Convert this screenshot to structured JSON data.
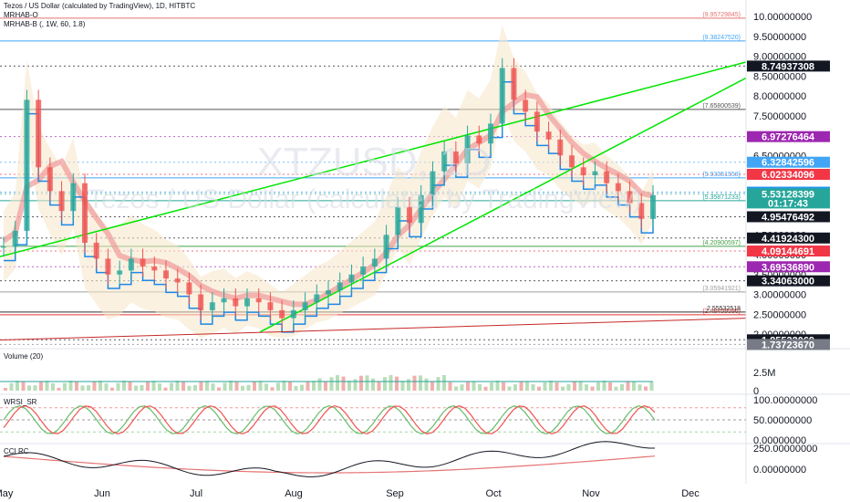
{
  "chart_data": [
    {
      "type": "line",
      "title": "Tezos / US Dollar (calculated by TradingView), 1D, HITBTC",
      "indicators": [
        "MRHAB-O",
        "MRHAB-B (, 1W, 60, 1.8)"
      ],
      "watermark_symbol": "XTZUSD, 1D",
      "watermark_name": "Tezos / US Dollar (calculated by TradingView)",
      "x_ticks": [
        "May",
        "Jun",
        "Jul",
        "Aug",
        "Sep",
        "Oct",
        "Nov",
        "Dec"
      ],
      "y_ticks": [
        "10.00000000",
        "9.50000000",
        "9.00000000",
        "8.50000000",
        "8.00000000",
        "7.50000000",
        "6.50000000",
        "5.00000000",
        "4.50000000",
        "4.00000000",
        "3.50000000",
        "3.00000000",
        "2.50000000",
        "2.00000000"
      ],
      "ylim": [
        1.7,
        10.2
      ],
      "horizontal_levels": [
        {
          "value": 9.95729845,
          "label": "(9.95729845)",
          "color": "#e57373"
        },
        {
          "value": 9.3824752,
          "label": "(9.38247520)",
          "color": "#42a5f5"
        },
        {
          "value": 7.65800539,
          "label": "(7.65800539)",
          "color": "#555555"
        },
        {
          "value": 5.93351558,
          "label": "(5.93351558)",
          "color": "#42a5f5"
        },
        {
          "value": 5.35871233,
          "label": "(5.35871233)",
          "color": "#26a69a"
        },
        {
          "value": 4.20900597,
          "label": "(4.20900597)",
          "color": "#43a047"
        },
        {
          "value": 3.05941921,
          "label": "(3.05941921)",
          "color": "#9e9e9e"
        },
        {
          "value": 2.48459596,
          "label": "(2.48459596)",
          "color": "#e53935"
        },
        {
          "value": 2.55532518,
          "label": "2.55532518",
          "color": "#333333"
        }
      ],
      "price_badges": [
        {
          "value": 8.74937308,
          "label": "8.74937308",
          "color": "#131722"
        },
        {
          "value": 6.97276464,
          "label": "6.97276464",
          "color": "#9c27b0"
        },
        {
          "value": 6.32842596,
          "label": "6.32842596",
          "color": "#42a5f5"
        },
        {
          "value": 6.02334096,
          "label": "6.02334096",
          "color": "#f23645"
        },
        {
          "value": 5.57381603,
          "label": "5.57381603",
          "color": "#2196f3"
        },
        {
          "value": 5.53128399,
          "label": "5.53128399",
          "color": "#26a69a",
          "sub": "01:17:43"
        },
        {
          "value": 4.95476492,
          "label": "4.95476492",
          "color": "#131722"
        },
        {
          "value": 4.419243,
          "label": "4.41924300",
          "color": "#131722"
        },
        {
          "value": 4.09144691,
          "label": "4.09144691",
          "color": "#f23645"
        },
        {
          "value": 3.6953689,
          "label": "3.69536890",
          "color": "#9c27b0"
        },
        {
          "value": 3.34063,
          "label": "3.34063000",
          "color": "#131722"
        },
        {
          "value": 1.85532069,
          "label": "1.85532069",
          "color": "#131722"
        },
        {
          "value": 1.7372367,
          "label": "1.73723670",
          "color": "#787b86"
        }
      ],
      "close_series": [
        4.2,
        4.6,
        7.9,
        6.2,
        5.6,
        5.1,
        5.8,
        4.3,
        3.9,
        3.5,
        3.6,
        3.9,
        3.7,
        3.6,
        3.4,
        3.3,
        3.0,
        2.6,
        2.8,
        2.9,
        2.7,
        2.9,
        2.8,
        2.6,
        2.4,
        2.6,
        2.8,
        3.0,
        3.1,
        3.3,
        3.5,
        3.7,
        3.9,
        4.5,
        5.2,
        4.8,
        5.5,
        6.1,
        6.6,
        6.3,
        7.0,
        6.8,
        7.3,
        8.7,
        7.9,
        7.6,
        7.1,
        6.9,
        6.5,
        6.2,
        6.0,
        6.1,
        5.8,
        5.6,
        5.3,
        4.9,
        5.5
      ]
    },
    {
      "type": "bar",
      "title": "Volume (20)",
      "y_ticks": [
        "2.5M",
        "0"
      ]
    },
    {
      "type": "line",
      "title": "WRSI_SR",
      "y_ticks": [
        "100.00000000",
        "50.00000000",
        "0.00000000"
      ],
      "ylim": [
        0,
        100
      ]
    },
    {
      "type": "line",
      "title": "CCI RC",
      "y_ticks": [
        "250.00000000",
        "0.00000000"
      ]
    }
  ]
}
